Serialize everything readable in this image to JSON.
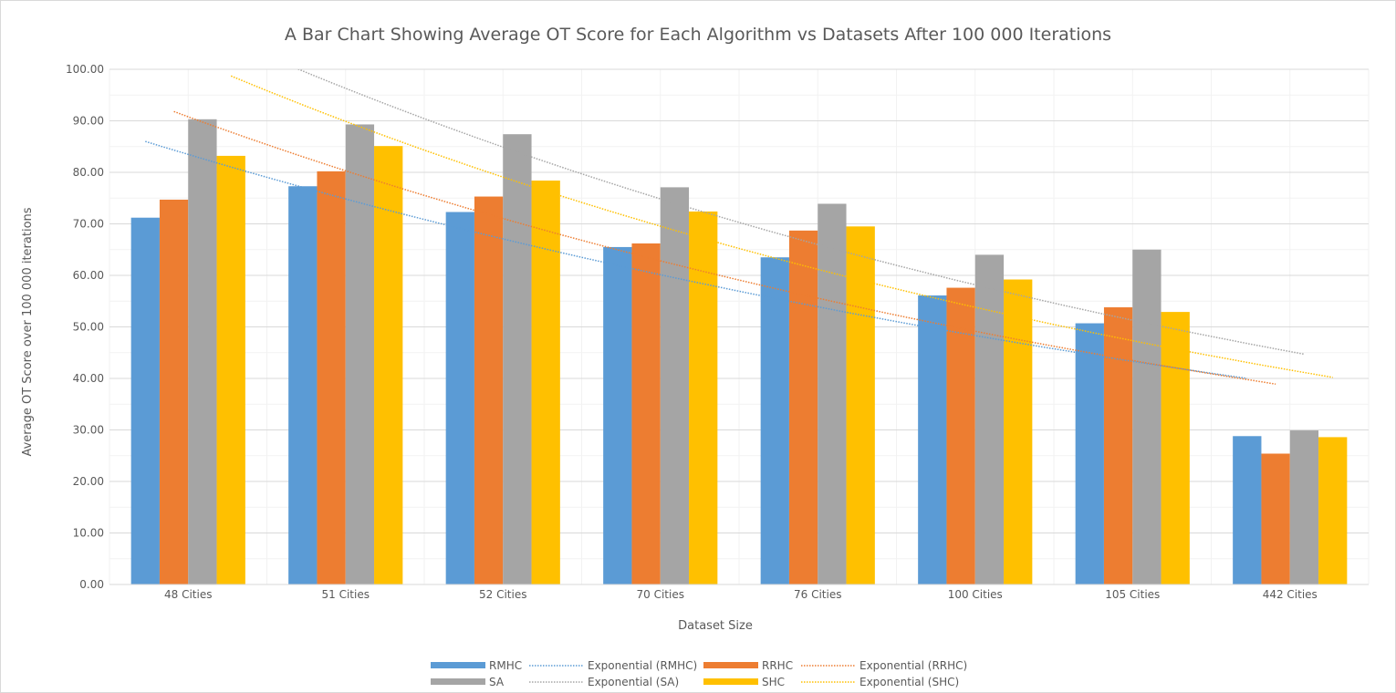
{
  "chart_data": {
    "type": "bar",
    "title": "A Bar Chart Showing Average OT Score for Each Algorithm vs Datasets After 100 000 Iterations",
    "xlabel": "Dataset Size",
    "ylabel": "Average OT Score over 100 000 iterations",
    "ylim": [
      0,
      100
    ],
    "ytick_step": 10,
    "ytick_labels": [
      "0.00",
      "10.00",
      "20.00",
      "30.00",
      "40.00",
      "50.00",
      "60.00",
      "70.00",
      "80.00",
      "90.00",
      "100.00"
    ],
    "grid": true,
    "legend_position": "bottom",
    "categories": [
      "48 Cities",
      "51 Cities",
      "52 Cities",
      "70 Cities",
      "76 Cities",
      "100 Cities",
      "105 Cities",
      "442 Cities"
    ],
    "series": [
      {
        "name": "RMHC",
        "color": "#5b9bd5",
        "values": [
          71.2,
          77.3,
          72.3,
          65.5,
          63.5,
          56.1,
          50.7,
          28.8
        ]
      },
      {
        "name": "RRHC",
        "color": "#ed7d31",
        "values": [
          74.7,
          80.2,
          75.3,
          66.2,
          68.7,
          57.6,
          53.8,
          25.4
        ]
      },
      {
        "name": "SA",
        "color": "#a5a5a5",
        "values": [
          90.3,
          89.3,
          87.4,
          77.1,
          73.9,
          64.0,
          65.0,
          29.9
        ]
      },
      {
        "name": "SHC",
        "color": "#ffc000",
        "values": [
          83.2,
          85.1,
          78.4,
          72.4,
          69.5,
          59.2,
          52.9,
          28.6
        ]
      }
    ],
    "trendlines": [
      {
        "name": "Exponential (RMHC)",
        "series": "RMHC",
        "color": "#5b9bd5",
        "start": 86.0,
        "end": 40.0
      },
      {
        "name": "Exponential (RRHC)",
        "series": "RRHC",
        "color": "#ed7d31",
        "start": 91.8,
        "end": 38.9
      },
      {
        "name": "Exponential (SA)",
        "series": "SA",
        "color": "#a5a5a5",
        "start": 108.0,
        "end": 44.7
      },
      {
        "name": "Exponential (SHC)",
        "series": "SHC",
        "color": "#ffc000",
        "start": 98.7,
        "end": 40.2
      }
    ],
    "legend": [
      {
        "label": "RMHC",
        "kind": "bar",
        "color": "#5b9bd5"
      },
      {
        "label": "Exponential (RMHC)",
        "kind": "trend",
        "color": "#5b9bd5"
      },
      {
        "label": "RRHC",
        "kind": "bar",
        "color": "#ed7d31"
      },
      {
        "label": "Exponential (RRHC)",
        "kind": "trend",
        "color": "#ed7d31"
      },
      {
        "label": "SA",
        "kind": "bar",
        "color": "#a5a5a5"
      },
      {
        "label": "Exponential (SA)",
        "kind": "trend",
        "color": "#a5a5a5"
      },
      {
        "label": "SHC",
        "kind": "bar",
        "color": "#ffc000"
      },
      {
        "label": "Exponential (SHC)",
        "kind": "trend",
        "color": "#ffc000"
      }
    ]
  }
}
